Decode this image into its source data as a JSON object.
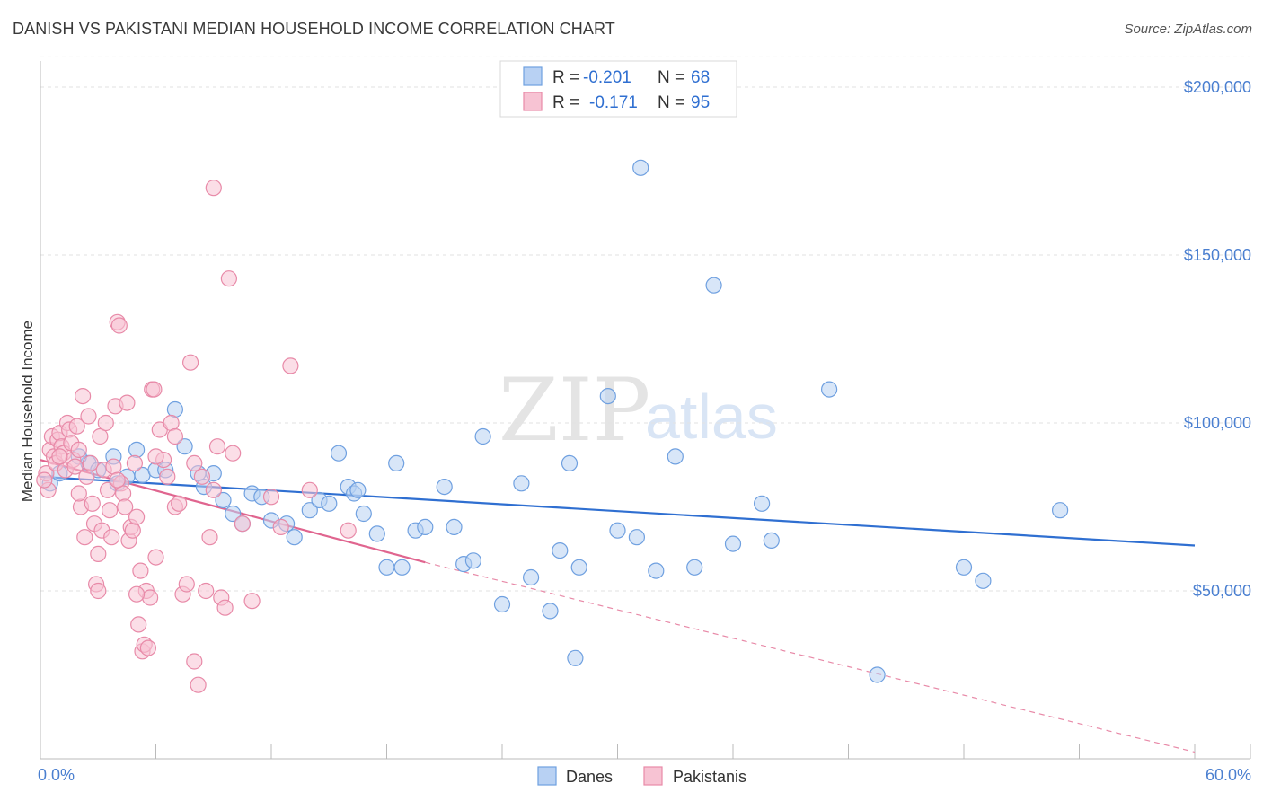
{
  "header": {
    "title": "DANISH VS PAKISTANI MEDIAN HOUSEHOLD INCOME CORRELATION CHART",
    "source": "Source: ZipAtlas.com"
  },
  "watermark": {
    "zip": "ZIP",
    "atlas": "atlas"
  },
  "legend": {
    "r_label": "R =",
    "n_label": "N =",
    "rows": [
      {
        "r": "-0.201",
        "n": "68"
      },
      {
        "r": "-0.171",
        "n": "95"
      }
    ]
  },
  "chart_data": {
    "type": "scatter",
    "title": "DANISH VS PAKISTANI MEDIAN HOUSEHOLD INCOME CORRELATION CHART",
    "ylabel": "Median Household Income",
    "xlabel": "",
    "xlim": [
      0,
      60
    ],
    "ylim": [
      0,
      210000
    ],
    "x_tick_labels": [
      "0.0%",
      "60.0%"
    ],
    "y_ticks": [
      {
        "value": 50000,
        "label": "$50,000"
      },
      {
        "value": 100000,
        "label": "$100,000"
      },
      {
        "value": 150000,
        "label": "$150,000"
      },
      {
        "value": 200000,
        "label": "$200,000"
      }
    ],
    "grid": "horizontal dashed",
    "legend_position": "top-center",
    "series": [
      {
        "name": "Danes",
        "color": "#6fa0e0",
        "fill": "#b8d1f3",
        "trend": {
          "x1": 0,
          "y1": 84000,
          "x2": 60,
          "y2": 63500,
          "color": "#2f6fd1"
        },
        "points": [
          [
            0.5,
            82000
          ],
          [
            2.5,
            88000
          ],
          [
            3.8,
            90000
          ],
          [
            4.5,
            84000
          ],
          [
            5.0,
            92000
          ],
          [
            5.3,
            84500
          ],
          [
            6.0,
            86000
          ],
          [
            7.0,
            104000
          ],
          [
            7.5,
            93000
          ],
          [
            8.2,
            85000
          ],
          [
            8.5,
            81000
          ],
          [
            9.5,
            77000
          ],
          [
            10.0,
            73000
          ],
          [
            10.5,
            70000
          ],
          [
            11.0,
            79000
          ],
          [
            11.5,
            78000
          ],
          [
            12.0,
            71000
          ],
          [
            12.8,
            70000
          ],
          [
            13.2,
            66000
          ],
          [
            14.0,
            74000
          ],
          [
            14.5,
            77000
          ],
          [
            15.0,
            76000
          ],
          [
            15.5,
            91000
          ],
          [
            16.0,
            81000
          ],
          [
            16.3,
            79000
          ],
          [
            16.8,
            73000
          ],
          [
            17.5,
            67000
          ],
          [
            18.0,
            57000
          ],
          [
            18.5,
            88000
          ],
          [
            18.8,
            57000
          ],
          [
            19.5,
            68000
          ],
          [
            20.0,
            69000
          ],
          [
            21.0,
            81000
          ],
          [
            21.5,
            69000
          ],
          [
            22.0,
            58000
          ],
          [
            22.5,
            59000
          ],
          [
            23.0,
            96000
          ],
          [
            24.0,
            46000
          ],
          [
            25.0,
            82000
          ],
          [
            25.5,
            54000
          ],
          [
            26.5,
            44000
          ],
          [
            27.0,
            62000
          ],
          [
            27.5,
            88000
          ],
          [
            27.8,
            30000
          ],
          [
            28.0,
            57000
          ],
          [
            29.5,
            108000
          ],
          [
            30.0,
            68000
          ],
          [
            31.0,
            66000
          ],
          [
            31.2,
            176000
          ],
          [
            32.0,
            56000
          ],
          [
            33.0,
            90000
          ],
          [
            34.0,
            57000
          ],
          [
            35.0,
            141000
          ],
          [
            36.0,
            64000
          ],
          [
            37.5,
            76000
          ],
          [
            38.0,
            65000
          ],
          [
            41.0,
            110000
          ],
          [
            43.5,
            25000
          ],
          [
            48.0,
            57000
          ],
          [
            49.0,
            53000
          ],
          [
            53.0,
            74000
          ],
          [
            1.0,
            85000
          ],
          [
            2.0,
            90000
          ],
          [
            3.0,
            86000
          ],
          [
            6.5,
            86000
          ],
          [
            4.0,
            82000
          ],
          [
            9.0,
            85000
          ],
          [
            16.5,
            80000
          ]
        ]
      },
      {
        "name": "Pakistanis",
        "color": "#e88aa8",
        "fill": "#f7c3d3",
        "trend": {
          "x1": 0,
          "y1": 89000,
          "x2": 20,
          "y2": 58500,
          "color": "#e0658f"
        },
        "trend_extension": {
          "x1": 20,
          "y1": 58500,
          "x2": 60,
          "y2": 2000
        },
        "points": [
          [
            0.3,
            85000
          ],
          [
            0.4,
            80000
          ],
          [
            0.5,
            92000
          ],
          [
            0.6,
            96000
          ],
          [
            0.7,
            90000
          ],
          [
            0.8,
            88000
          ],
          [
            0.9,
            95000
          ],
          [
            1.0,
            97000
          ],
          [
            1.1,
            93000
          ],
          [
            1.2,
            91000
          ],
          [
            1.3,
            86000
          ],
          [
            1.4,
            100000
          ],
          [
            1.5,
            98000
          ],
          [
            1.6,
            94000
          ],
          [
            1.7,
            89000
          ],
          [
            1.8,
            87000
          ],
          [
            1.9,
            99000
          ],
          [
            2.0,
            92000
          ],
          [
            2.1,
            75000
          ],
          [
            2.2,
            108000
          ],
          [
            2.3,
            66000
          ],
          [
            2.4,
            84000
          ],
          [
            2.5,
            102000
          ],
          [
            2.6,
            88000
          ],
          [
            2.7,
            76000
          ],
          [
            2.8,
            70000
          ],
          [
            2.9,
            52000
          ],
          [
            3.0,
            50000
          ],
          [
            3.1,
            96000
          ],
          [
            3.2,
            68000
          ],
          [
            3.3,
            86000
          ],
          [
            3.4,
            100000
          ],
          [
            3.5,
            80000
          ],
          [
            3.6,
            74000
          ],
          [
            3.7,
            66000
          ],
          [
            3.8,
            87000
          ],
          [
            3.9,
            105000
          ],
          [
            4.0,
            130000
          ],
          [
            4.1,
            129000
          ],
          [
            4.2,
            82000
          ],
          [
            4.3,
            79000
          ],
          [
            4.4,
            75000
          ],
          [
            4.5,
            106000
          ],
          [
            4.6,
            65000
          ],
          [
            4.7,
            69000
          ],
          [
            4.8,
            68000
          ],
          [
            4.9,
            88000
          ],
          [
            5.0,
            72000
          ],
          [
            5.1,
            40000
          ],
          [
            5.2,
            56000
          ],
          [
            5.3,
            32000
          ],
          [
            5.4,
            34000
          ],
          [
            5.5,
            50000
          ],
          [
            5.6,
            33000
          ],
          [
            5.7,
            48000
          ],
          [
            5.8,
            110000
          ],
          [
            5.9,
            110000
          ],
          [
            6.0,
            60000
          ],
          [
            6.2,
            98000
          ],
          [
            6.4,
            89000
          ],
          [
            6.6,
            84000
          ],
          [
            6.8,
            100000
          ],
          [
            7.0,
            75000
          ],
          [
            7.2,
            76000
          ],
          [
            7.4,
            49000
          ],
          [
            7.6,
            52000
          ],
          [
            7.8,
            118000
          ],
          [
            8.0,
            29000
          ],
          [
            8.2,
            22000
          ],
          [
            8.4,
            84000
          ],
          [
            8.6,
            50000
          ],
          [
            8.8,
            66000
          ],
          [
            9.0,
            170000
          ],
          [
            9.2,
            93000
          ],
          [
            9.4,
            48000
          ],
          [
            9.6,
            45000
          ],
          [
            9.8,
            143000
          ],
          [
            10.0,
            91000
          ],
          [
            10.5,
            70000
          ],
          [
            11.0,
            47000
          ],
          [
            12.0,
            78000
          ],
          [
            12.5,
            69000
          ],
          [
            13.0,
            117000
          ],
          [
            14.0,
            80000
          ],
          [
            16.0,
            68000
          ],
          [
            0.2,
            83000
          ],
          [
            1.0,
            90000
          ],
          [
            2.0,
            79000
          ],
          [
            3.0,
            61000
          ],
          [
            4.0,
            83000
          ],
          [
            5.0,
            49000
          ],
          [
            6.0,
            90000
          ],
          [
            7.0,
            96000
          ],
          [
            8.0,
            88000
          ],
          [
            9.0,
            80000
          ]
        ]
      }
    ]
  },
  "bottom_legend": [
    {
      "label": "Danes"
    },
    {
      "label": "Pakistanis"
    }
  ]
}
